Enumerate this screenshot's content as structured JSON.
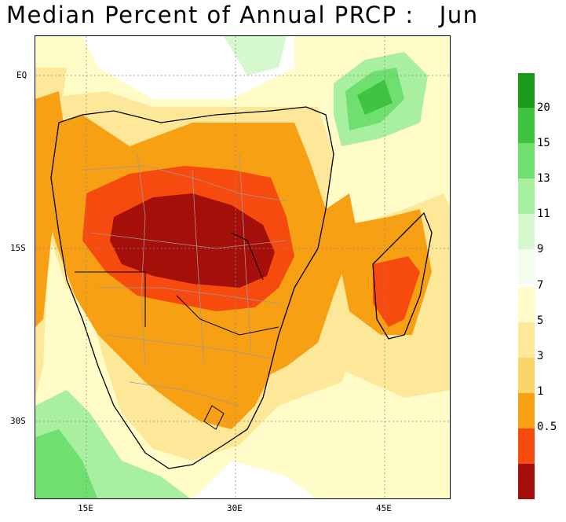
{
  "title": "Median Percent of Annual PRCP :   Jun",
  "map": {
    "lat_labels": [
      "EQ",
      "15S",
      "30S"
    ],
    "lon_labels": [
      "15E",
      "30E",
      "45E"
    ]
  },
  "legend": {
    "dry_scale": [
      {
        "label": "7",
        "color": "#fffcc8"
      },
      {
        "label": "5",
        "color": "#fde89a"
      },
      {
        "label": "3",
        "color": "#fbd46a"
      },
      {
        "label": "1",
        "color": "#f7a013"
      },
      {
        "label": "0.5",
        "color": "#f74a0e"
      },
      {
        "label": "",
        "color": "#a50f0a"
      }
    ],
    "wet_scale": [
      {
        "label": "",
        "color": "#1a9a1a"
      },
      {
        "label": "20",
        "color": "#3fc43f"
      },
      {
        "label": "15",
        "color": "#6fe06f"
      },
      {
        "label": "13",
        "color": "#a8f0a0"
      },
      {
        "label": "11",
        "color": "#d6f8cf"
      },
      {
        "label": "9",
        "color": "#f2fdf0"
      }
    ]
  },
  "colors": {
    "ocean_high": "#ffffff",
    "land_border": "#000000",
    "admin_border": "#9a9a9a",
    "grid": "#8a8a8a"
  }
}
